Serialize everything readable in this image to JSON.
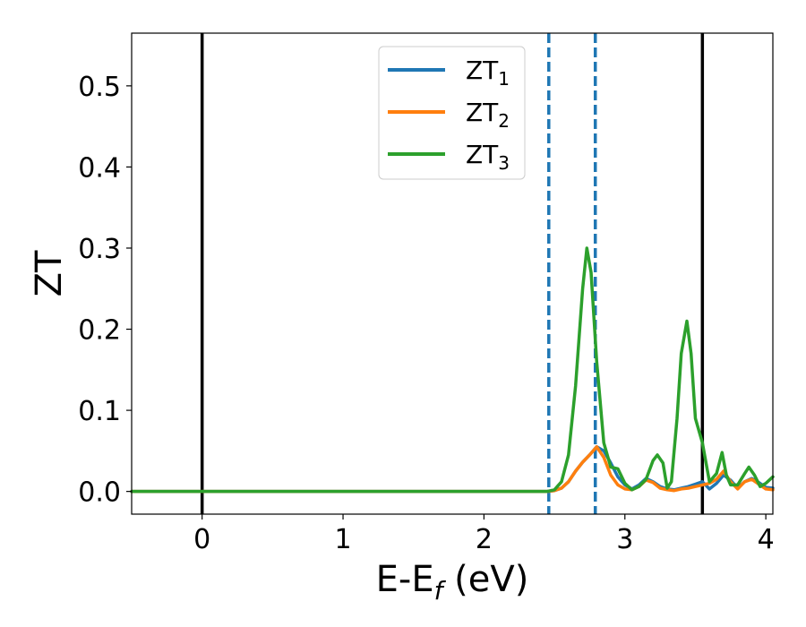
{
  "chart_data": {
    "type": "line",
    "xlabel": "E-E",
    "xlabel_sub": "f",
    "xlabel_unit": " (eV)",
    "ylabel": "ZT",
    "xlim": [
      -0.5,
      4.05
    ],
    "ylim": [
      -0.028,
      0.565
    ],
    "xticks": [
      0,
      1,
      2,
      3,
      4
    ],
    "xtick_labels": [
      "0",
      "1",
      "2",
      "3",
      "4"
    ],
    "yticks": [
      0.0,
      0.1,
      0.2,
      0.3,
      0.4,
      0.5
    ],
    "ytick_labels": [
      "0.0",
      "0.1",
      "0.2",
      "0.3",
      "0.4",
      "0.5"
    ],
    "grid": false,
    "legend_position": "top-center",
    "vlines_solid": [
      0.0,
      3.55
    ],
    "vlines_dashed": [
      2.46,
      2.79
    ],
    "series": [
      {
        "name": "ZT",
        "name_sub": "1",
        "color": "#1f77b4",
        "x": [
          -0.5,
          2.45,
          2.5,
          2.55,
          2.6,
          2.65,
          2.7,
          2.75,
          2.8,
          2.85,
          2.9,
          2.95,
          3.0,
          3.05,
          3.1,
          3.15,
          3.2,
          3.25,
          3.3,
          3.35,
          3.4,
          3.45,
          3.5,
          3.55,
          3.6,
          3.65,
          3.7,
          3.75,
          3.8,
          3.85,
          3.9,
          3.95,
          4.0,
          4.05
        ],
        "y": [
          0.0,
          0.0,
          0.001,
          0.004,
          0.012,
          0.025,
          0.036,
          0.045,
          0.055,
          0.05,
          0.035,
          0.018,
          0.008,
          0.003,
          0.008,
          0.016,
          0.012,
          0.006,
          0.003,
          0.002,
          0.004,
          0.006,
          0.009,
          0.012,
          0.003,
          0.01,
          0.02,
          0.014,
          0.004,
          0.012,
          0.016,
          0.011,
          0.005,
          0.004
        ]
      },
      {
        "name": "ZT",
        "name_sub": "2",
        "color": "#ff7f0e",
        "x": [
          -0.5,
          2.45,
          2.5,
          2.55,
          2.6,
          2.65,
          2.7,
          2.75,
          2.8,
          2.85,
          2.9,
          2.95,
          3.0,
          3.05,
          3.1,
          3.15,
          3.2,
          3.25,
          3.3,
          3.35,
          3.4,
          3.45,
          3.5,
          3.55,
          3.6,
          3.65,
          3.7,
          3.75,
          3.8,
          3.85,
          3.9,
          3.95,
          4.0,
          4.05
        ],
        "y": [
          0.0,
          0.0,
          0.001,
          0.004,
          0.012,
          0.025,
          0.036,
          0.045,
          0.055,
          0.042,
          0.02,
          0.008,
          0.003,
          0.002,
          0.006,
          0.014,
          0.011,
          0.004,
          0.002,
          0.001,
          0.003,
          0.004,
          0.006,
          0.008,
          0.01,
          0.015,
          0.025,
          0.012,
          0.003,
          0.012,
          0.015,
          0.009,
          0.003,
          0.002
        ]
      },
      {
        "name": "ZT",
        "name_sub": "3",
        "color": "#2ca02c",
        "x": [
          -0.5,
          2.45,
          2.5,
          2.55,
          2.6,
          2.65,
          2.7,
          2.73,
          2.76,
          2.8,
          2.85,
          2.9,
          2.95,
          3.0,
          3.05,
          3.1,
          3.15,
          3.2,
          3.23,
          3.27,
          3.3,
          3.33,
          3.37,
          3.4,
          3.44,
          3.47,
          3.5,
          3.55,
          3.6,
          3.65,
          3.69,
          3.72,
          3.75,
          3.8,
          3.85,
          3.88,
          3.92,
          3.96,
          4.0,
          4.05
        ],
        "y": [
          0.0,
          0.0,
          0.002,
          0.012,
          0.045,
          0.13,
          0.25,
          0.3,
          0.27,
          0.16,
          0.06,
          0.03,
          0.028,
          0.01,
          0.002,
          0.006,
          0.015,
          0.038,
          0.045,
          0.035,
          0.004,
          0.012,
          0.09,
          0.17,
          0.21,
          0.17,
          0.09,
          0.06,
          0.012,
          0.022,
          0.048,
          0.02,
          0.008,
          0.008,
          0.022,
          0.03,
          0.02,
          0.006,
          0.01,
          0.018
        ]
      }
    ]
  }
}
